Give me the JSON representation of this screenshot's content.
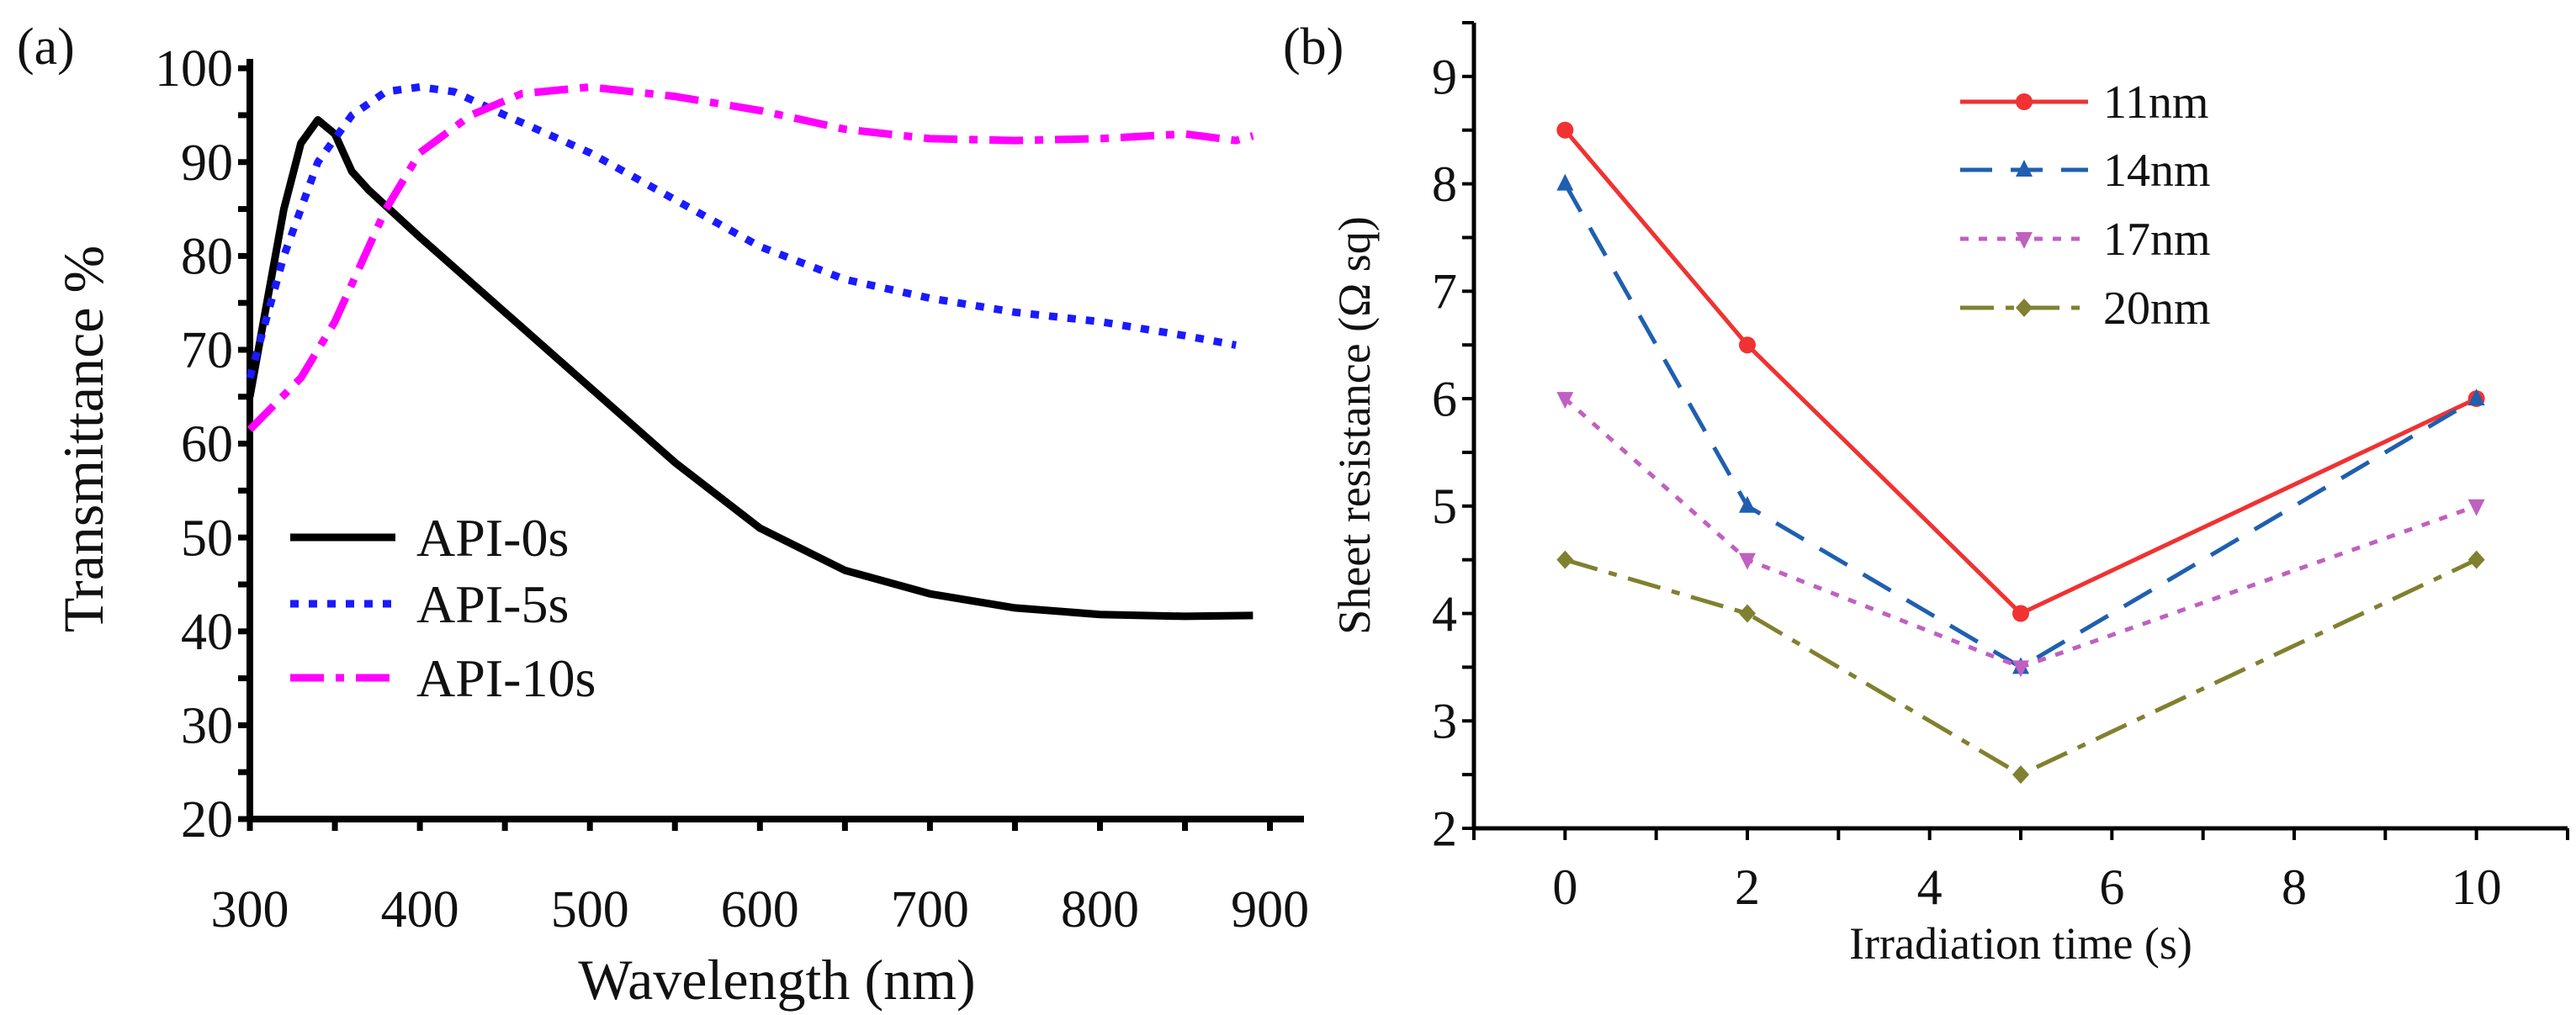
{
  "chart_data": [
    {
      "type": "line",
      "panel_label": "(a)",
      "xlabel": "Wavelength (nm)",
      "ylabel": "Transmittance %",
      "xlim": [
        300,
        920
      ],
      "ylim": [
        20,
        101
      ],
      "xticks": [
        300,
        400,
        500,
        600,
        700,
        800,
        900
      ],
      "yticks": [
        20,
        30,
        40,
        50,
        60,
        70,
        80,
        90,
        100
      ],
      "grid": false,
      "legend_position": "lower-left",
      "series": [
        {
          "name": "API-0s",
          "color": "#000000",
          "dash": "solid",
          "x": [
            300,
            310,
            320,
            330,
            340,
            350,
            360,
            370,
            400,
            450,
            500,
            550,
            600,
            650,
            700,
            750,
            800,
            850,
            890
          ],
          "y": [
            65,
            75,
            85,
            92,
            94.5,
            93,
            89,
            87,
            82,
            74,
            66,
            58,
            51,
            46.5,
            44,
            42.5,
            41.8,
            41.6,
            41.7
          ]
        },
        {
          "name": "API-5s",
          "color": "#1a1aff",
          "dash": "dot",
          "x": [
            300,
            320,
            340,
            360,
            380,
            400,
            420,
            450,
            500,
            550,
            600,
            650,
            700,
            750,
            800,
            850,
            880
          ],
          "y": [
            67,
            80,
            90,
            95,
            97.5,
            98,
            97.5,
            95,
            91,
            86,
            81,
            77.5,
            75.5,
            74,
            73,
            71.5,
            70.5
          ]
        },
        {
          "name": "API-10s",
          "color": "#ff00ff",
          "dash": "dashdot",
          "x": [
            300,
            330,
            350,
            380,
            400,
            430,
            460,
            500,
            550,
            600,
            650,
            700,
            750,
            800,
            850,
            880,
            890
          ],
          "y": [
            61.5,
            67,
            73,
            85,
            91,
            95,
            97.3,
            98,
            97,
            95.5,
            93.5,
            92.5,
            92.3,
            92.5,
            93,
            92.3,
            92.8
          ]
        }
      ]
    },
    {
      "type": "line",
      "panel_label": "(b)",
      "xlabel": "Irradiation time  (s)",
      "ylabel": "Sheet resistance  (Ω sq)",
      "xlim": [
        -1,
        11
      ],
      "ylim": [
        2,
        9.5
      ],
      "xticks": [
        0,
        2,
        4,
        6,
        8,
        10
      ],
      "yticks": [
        2,
        3,
        4,
        5,
        6,
        7,
        8,
        9
      ],
      "grid": false,
      "legend_position": "top-center",
      "x": [
        0,
        2,
        5,
        10
      ],
      "series": [
        {
          "name": "11nm",
          "color": "#f03232",
          "dash": "solid",
          "marker": "circle",
          "values": [
            8.5,
            6.5,
            4.0,
            6.0
          ]
        },
        {
          "name": "14nm",
          "color": "#1f5fb0",
          "dash": "dash",
          "marker": "triangle-up",
          "values": [
            8.0,
            5.0,
            3.5,
            6.0
          ]
        },
        {
          "name": "17nm",
          "color": "#c060c0",
          "dash": "dot",
          "marker": "triangle-down",
          "values": [
            6.0,
            4.5,
            3.5,
            5.0
          ]
        },
        {
          "name": "20nm",
          "color": "#808030",
          "dash": "dashdot",
          "marker": "diamond",
          "values": [
            4.5,
            4.0,
            2.5,
            4.5
          ]
        }
      ]
    }
  ]
}
